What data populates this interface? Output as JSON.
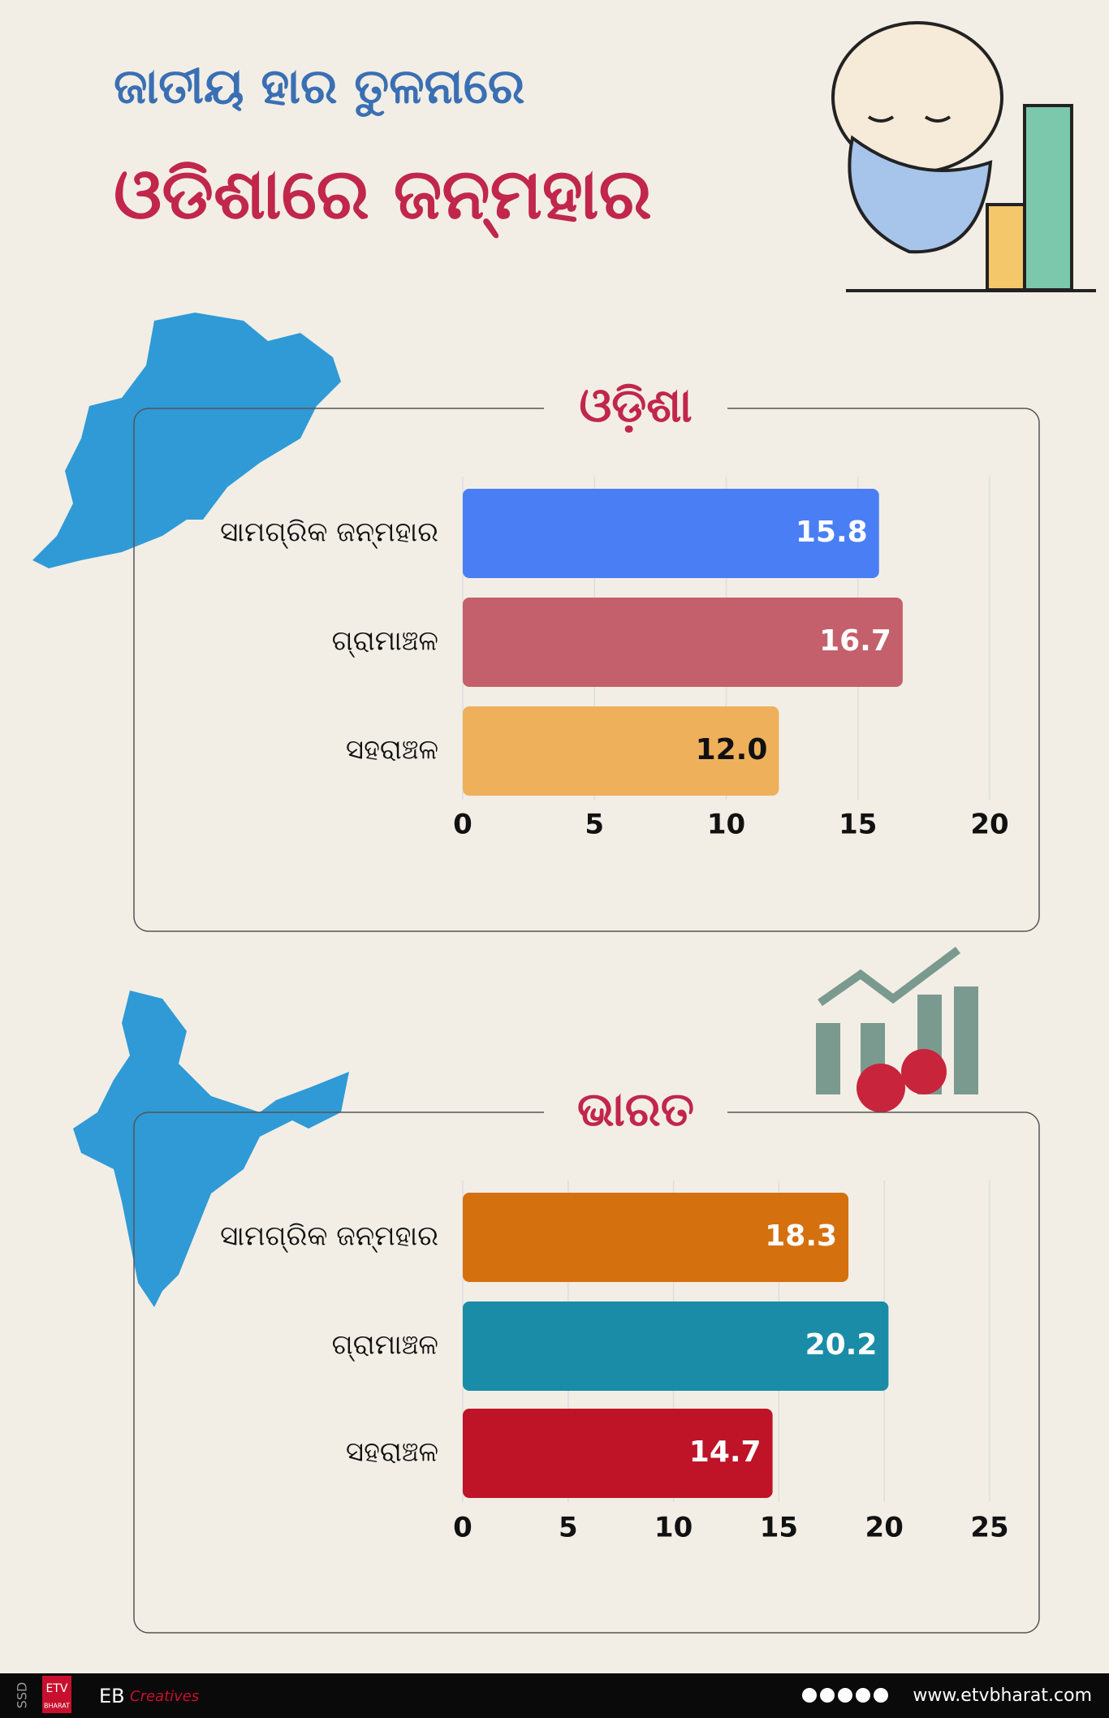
{
  "header": {
    "line1": "ଜାତୀୟ ହାର ତୁଳନାରେ",
    "line2": "ଓଡିଶାରେ ଜନ୍ମହାର"
  },
  "chart_data": [
    {
      "type": "bar",
      "orientation": "horizontal",
      "title": "ଓଡ଼ିଶା",
      "categories": [
        "ସାମଗ୍ରିକ ଜନ୍ମହାର",
        "ଗ୍ରାମାଞ୍ଚଳ",
        "ସହରାଞ୍ଚଳ"
      ],
      "values": [
        15.8,
        16.7,
        12.0
      ],
      "value_labels": [
        "15.8",
        "16.7",
        "12.0"
      ],
      "colors": [
        "#4a7ef5",
        "#c4606b",
        "#efb05c"
      ],
      "xlim": [
        0,
        20
      ],
      "xticks": [
        0,
        5,
        10,
        15,
        20
      ],
      "grid": true
    },
    {
      "type": "bar",
      "orientation": "horizontal",
      "title": "ଭାରତ",
      "categories": [
        "ସାମଗ୍ରିକ ଜନ୍ମହାର",
        "ଗ୍ରାମାଞ୍ଚଳ",
        "ସହରାଞ୍ଚଳ"
      ],
      "values": [
        18.3,
        20.2,
        14.7
      ],
      "value_labels": [
        "18.3",
        "20.2",
        "14.7"
      ],
      "colors": [
        "#d5700f",
        "#1a8ca8",
        "#bf1328"
      ],
      "xlim": [
        0,
        25
      ],
      "xticks": [
        0,
        5,
        10,
        15,
        20,
        25
      ],
      "grid": true
    }
  ],
  "footer": {
    "side_label": "SSD",
    "logo": "ETV",
    "logo_sub": "BHARAT",
    "brand": "EB",
    "brand_sub": "Creatives",
    "website": "www.etvbharat.com"
  }
}
